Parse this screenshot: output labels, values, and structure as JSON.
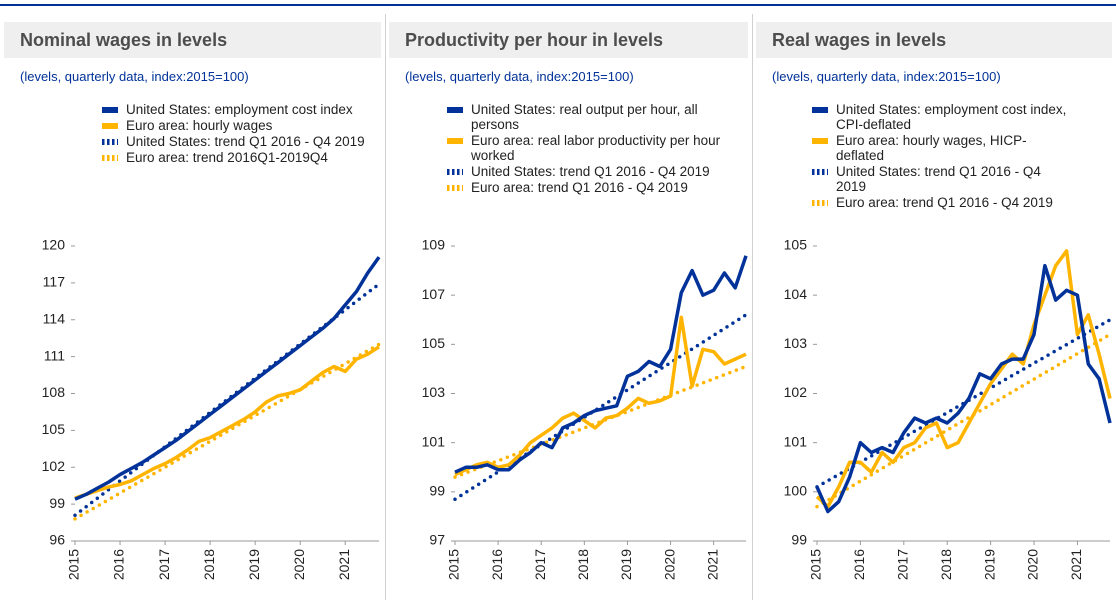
{
  "chart_data": [
    {
      "type": "line",
      "title": "Nominal wages in levels",
      "subtitle": "(levels, quarterly data, index:2015=100)",
      "x": [
        2015,
        2015.25,
        2015.5,
        2015.75,
        2016,
        2016.25,
        2016.5,
        2016.75,
        2017,
        2017.25,
        2017.5,
        2017.75,
        2018,
        2018.25,
        2018.5,
        2018.75,
        2019,
        2019.25,
        2019.5,
        2019.75,
        2020,
        2020.25,
        2020.5,
        2020.75,
        2021,
        2021.25,
        2021.5,
        2021.75
      ],
      "xlim": [
        2015,
        2021.75
      ],
      "xticks": [
        2015,
        2016,
        2017,
        2018,
        2019,
        2020,
        2021
      ],
      "ylim": [
        96,
        120
      ],
      "yticks": [
        96,
        99,
        102,
        105,
        108,
        111,
        114,
        117,
        120
      ],
      "series": [
        {
          "name": "United States: employment cost index",
          "color": "#003299",
          "style": "solid",
          "values": [
            99.4,
            99.8,
            100.3,
            100.8,
            101.4,
            101.9,
            102.4,
            103.0,
            103.6,
            104.2,
            104.9,
            105.6,
            106.3,
            107.0,
            107.7,
            108.4,
            109.1,
            109.8,
            110.5,
            111.2,
            111.9,
            112.6,
            113.3,
            114.1,
            115.2,
            116.3,
            117.8,
            119.1
          ]
        },
        {
          "name": "Euro area: hourly wages",
          "color": "#ffb400",
          "style": "solid",
          "values": [
            99.5,
            99.8,
            100.1,
            100.4,
            100.6,
            100.9,
            101.4,
            101.9,
            102.3,
            102.8,
            103.4,
            104.1,
            104.4,
            104.9,
            105.4,
            105.9,
            106.5,
            107.3,
            107.8,
            108.0,
            108.3,
            109.0,
            109.7,
            110.2,
            109.8,
            110.8,
            111.2,
            111.8
          ]
        },
        {
          "name": "United States: trend Q1 2016 - Q4 2019",
          "color": "#003299",
          "style": "dotted",
          "x": [
            2015,
            2021.75
          ],
          "values": [
            98.1,
            116.9
          ]
        },
        {
          "name": "Euro area: trend 2016Q1-2019Q4",
          "color": "#ffb400",
          "style": "dotted",
          "x": [
            2015,
            2021.75
          ],
          "values": [
            97.8,
            112.0
          ]
        }
      ]
    },
    {
      "type": "line",
      "title": "Productivity per hour in levels",
      "subtitle": "(levels, quarterly data, index:2015=100)",
      "x": [
        2015,
        2015.25,
        2015.5,
        2015.75,
        2016,
        2016.25,
        2016.5,
        2016.75,
        2017,
        2017.25,
        2017.5,
        2017.75,
        2018,
        2018.25,
        2018.5,
        2018.75,
        2019,
        2019.25,
        2019.5,
        2019.75,
        2020,
        2020.25,
        2020.5,
        2020.75,
        2021,
        2021.25,
        2021.5,
        2021.75
      ],
      "xlim": [
        2015,
        2021.75
      ],
      "xticks": [
        2015,
        2016,
        2017,
        2018,
        2019,
        2020,
        2021
      ],
      "ylim": [
        97,
        109
      ],
      "yticks": [
        97,
        99,
        101,
        103,
        105,
        107,
        109
      ],
      "series": [
        {
          "name": "United States: real output per hour, all persons",
          "color": "#003299",
          "style": "solid",
          "values": [
            99.8,
            100.0,
            100.0,
            100.1,
            99.9,
            99.9,
            100.3,
            100.6,
            101.0,
            100.8,
            101.6,
            101.8,
            102.1,
            102.3,
            102.4,
            102.5,
            103.7,
            103.9,
            104.3,
            104.1,
            104.8,
            107.1,
            108.0,
            107.0,
            107.2,
            107.9,
            107.3,
            108.6
          ]
        },
        {
          "name": "Euro area: real labor productivity per hour worked",
          "color": "#ffb400",
          "style": "solid",
          "values": [
            99.7,
            99.9,
            100.1,
            100.2,
            100.0,
            100.1,
            100.5,
            101.0,
            101.3,
            101.6,
            102.0,
            102.2,
            101.9,
            101.6,
            102.0,
            102.1,
            102.4,
            102.8,
            102.6,
            102.7,
            102.9,
            106.1,
            103.3,
            104.8,
            104.7,
            104.2,
            104.4,
            104.6
          ]
        },
        {
          "name": "United States: trend Q1 2016 - Q4 2019",
          "color": "#003299",
          "style": "dotted",
          "x": [
            2015,
            2021.75
          ],
          "values": [
            98.7,
            106.2
          ]
        },
        {
          "name": "Euro area: trend Q1 2016 - Q4 2019",
          "color": "#ffb400",
          "style": "dotted",
          "x": [
            2015,
            2021.75
          ],
          "values": [
            99.6,
            104.1
          ]
        }
      ]
    },
    {
      "type": "line",
      "title": "Real wages in levels",
      "subtitle": "(levels, quarterly data, index:2015=100)",
      "x": [
        2015,
        2015.25,
        2015.5,
        2015.75,
        2016,
        2016.25,
        2016.5,
        2016.75,
        2017,
        2017.25,
        2017.5,
        2017.75,
        2018,
        2018.25,
        2018.5,
        2018.75,
        2019,
        2019.25,
        2019.5,
        2019.75,
        2020,
        2020.25,
        2020.5,
        2020.75,
        2021,
        2021.25,
        2021.5,
        2021.75
      ],
      "xlim": [
        2015,
        2021.75
      ],
      "xticks": [
        2015,
        2016,
        2017,
        2018,
        2019,
        2020,
        2021
      ],
      "ylim": [
        99,
        105
      ],
      "yticks": [
        99,
        100,
        101,
        102,
        103,
        104,
        105
      ],
      "series": [
        {
          "name": "United States: employment cost index, CPI-deflated",
          "color": "#003299",
          "style": "solid",
          "values": [
            100.1,
            99.6,
            99.8,
            100.3,
            101.0,
            100.8,
            100.9,
            100.8,
            101.2,
            101.5,
            101.4,
            101.5,
            101.4,
            101.6,
            101.9,
            102.4,
            102.3,
            102.6,
            102.7,
            102.7,
            103.2,
            104.6,
            103.9,
            104.1,
            104.0,
            102.6,
            102.3,
            101.4
          ]
        },
        {
          "name": "Euro area: hourly wages, HICP-deflated",
          "color": "#ffb400",
          "style": "solid",
          "values": [
            99.9,
            99.7,
            100.1,
            100.6,
            100.6,
            100.4,
            100.8,
            100.6,
            100.9,
            101.0,
            101.3,
            101.4,
            100.9,
            101.0,
            101.4,
            101.8,
            102.2,
            102.5,
            102.8,
            102.6,
            103.4,
            104.0,
            104.6,
            104.9,
            103.2,
            103.6,
            102.8,
            101.9
          ]
        },
        {
          "name": "United States: trend Q1 2016 - Q4 2019",
          "color": "#003299",
          "style": "dotted",
          "x": [
            2015,
            2021.75
          ],
          "values": [
            100.1,
            103.5
          ]
        },
        {
          "name": "Euro area: trend Q1 2016 - Q4 2019",
          "color": "#ffb400",
          "style": "dotted",
          "x": [
            2015,
            2021.75
          ],
          "values": [
            99.7,
            103.2
          ]
        }
      ]
    }
  ]
}
